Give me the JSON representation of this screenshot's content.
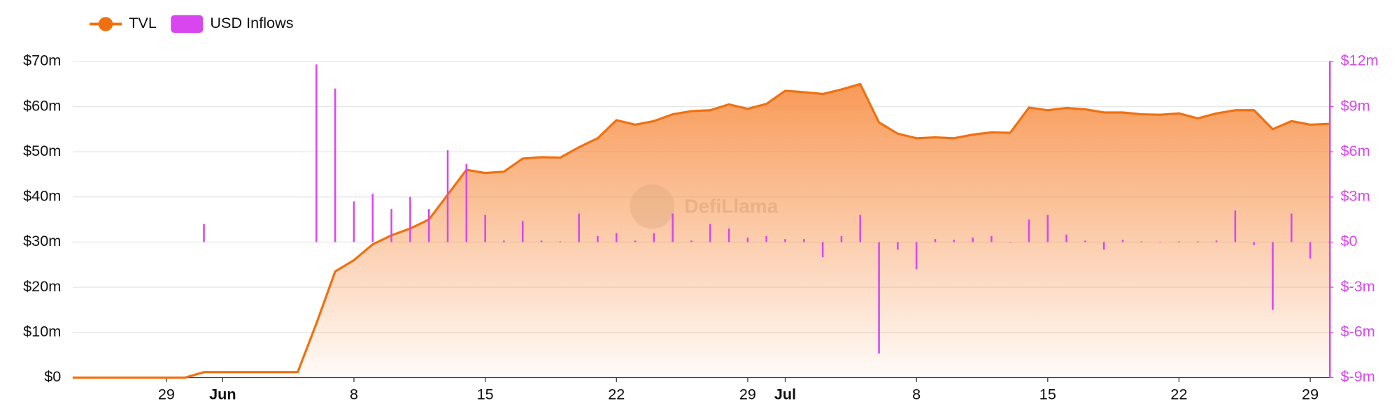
{
  "chart_data": {
    "type": "line-bar",
    "watermark": "DefiLlama",
    "x": [
      "05-24",
      "05-25",
      "05-26",
      "05-27",
      "05-28",
      "05-29",
      "05-30",
      "05-31",
      "06-01",
      "06-02",
      "06-03",
      "06-04",
      "06-05",
      "06-06",
      "06-07",
      "06-08",
      "06-09",
      "06-10",
      "06-11",
      "06-12",
      "06-13",
      "06-14",
      "06-15",
      "06-16",
      "06-17",
      "06-18",
      "06-19",
      "06-20",
      "06-21",
      "06-22",
      "06-23",
      "06-24",
      "06-25",
      "06-26",
      "06-27",
      "06-28",
      "06-29",
      "06-30",
      "07-01",
      "07-02",
      "07-03",
      "07-04",
      "07-05",
      "07-06",
      "07-07",
      "07-08",
      "07-09",
      "07-10",
      "07-11",
      "07-12",
      "07-13",
      "07-14",
      "07-15",
      "07-16",
      "07-17",
      "07-18",
      "07-19",
      "07-20",
      "07-21",
      "07-22",
      "07-23",
      "07-24",
      "07-25",
      "07-26",
      "07-27",
      "07-28",
      "07-29",
      "07-30"
    ],
    "xticks": [
      {
        "value": "05-29",
        "label": "29"
      },
      {
        "value": "06-01",
        "label": "Jun"
      },
      {
        "value": "06-08",
        "label": "8"
      },
      {
        "value": "06-15",
        "label": "15"
      },
      {
        "value": "06-22",
        "label": "22"
      },
      {
        "value": "06-29",
        "label": "29"
      },
      {
        "value": "07-01",
        "label": "Jul"
      },
      {
        "value": "07-08",
        "label": "8"
      },
      {
        "value": "07-15",
        "label": "15"
      },
      {
        "value": "07-22",
        "label": "22"
      },
      {
        "value": "07-29",
        "label": "29"
      }
    ],
    "series": [
      {
        "name": "TVL",
        "color": "#f07010",
        "kind": "area",
        "axis": "y",
        "values": [
          0,
          0,
          0,
          0,
          0,
          0,
          0,
          1.2,
          1.2,
          1.2,
          1.2,
          1.2,
          1.2,
          12,
          23.5,
          26,
          29.5,
          31.5,
          33,
          35,
          40.5,
          46,
          45.3,
          45.6,
          48.5,
          48.8,
          48.7,
          51,
          53,
          57,
          56,
          56.8,
          58.3,
          59,
          59.2,
          60.5,
          59.5,
          60.6,
          63.5,
          63.2,
          62.8,
          63.8,
          65,
          56.5,
          54,
          53,
          53.2,
          53,
          53.8,
          54.3,
          54.2,
          59.8,
          59.2,
          59.7,
          59.4,
          58.7,
          58.7,
          58.3,
          58.2,
          58.5,
          57.4,
          58.5,
          59.2,
          59.2,
          55,
          56.8,
          56,
          56.2
        ]
      },
      {
        "name": "USD Inflows",
        "color": "#d946ef",
        "kind": "bar",
        "axis": "y2",
        "values": [
          null,
          null,
          null,
          null,
          null,
          null,
          null,
          1.2,
          null,
          null,
          null,
          null,
          null,
          11.8,
          10.2,
          2.7,
          3.2,
          2.2,
          3.0,
          2.2,
          6.1,
          5.2,
          1.8,
          0.1,
          1.4,
          0.1,
          0.05,
          1.9,
          0.4,
          0.6,
          0.1,
          0.6,
          1.9,
          0.1,
          1.2,
          0.9,
          0.3,
          0.4,
          0.2,
          0.2,
          -1.0,
          0.4,
          1.8,
          -7.4,
          -0.5,
          -1.8,
          0.2,
          0.15,
          0.3,
          0.4,
          0,
          1.5,
          1.8,
          0.5,
          0.1,
          -0.5,
          0.15,
          0.05,
          0,
          0.05,
          0.05,
          0.1,
          2.1,
          -0.2,
          -4.5,
          1.9,
          -1.1,
          0
        ]
      }
    ],
    "ylim": [
      0,
      70
    ],
    "yticks": [
      {
        "value": 0,
        "label": "$0"
      },
      {
        "value": 10,
        "label": "$10m"
      },
      {
        "value": 20,
        "label": "$20m"
      },
      {
        "value": 30,
        "label": "$30m"
      },
      {
        "value": 40,
        "label": "$40m"
      },
      {
        "value": 50,
        "label": "$50m"
      },
      {
        "value": 60,
        "label": "$60m"
      },
      {
        "value": 70,
        "label": "$70m"
      }
    ],
    "y2lim": [
      -9,
      12
    ],
    "y2ticks": [
      {
        "value": -9,
        "label": "$-9m"
      },
      {
        "value": -6,
        "label": "$-6m"
      },
      {
        "value": -3,
        "label": "$-3m"
      },
      {
        "value": 0,
        "label": "$0"
      },
      {
        "value": 3,
        "label": "$3m"
      },
      {
        "value": 6,
        "label": "$6m"
      },
      {
        "value": 9,
        "label": "$9m"
      },
      {
        "value": 12,
        "label": "$12m"
      }
    ],
    "grid": true,
    "legend": "top-left"
  }
}
